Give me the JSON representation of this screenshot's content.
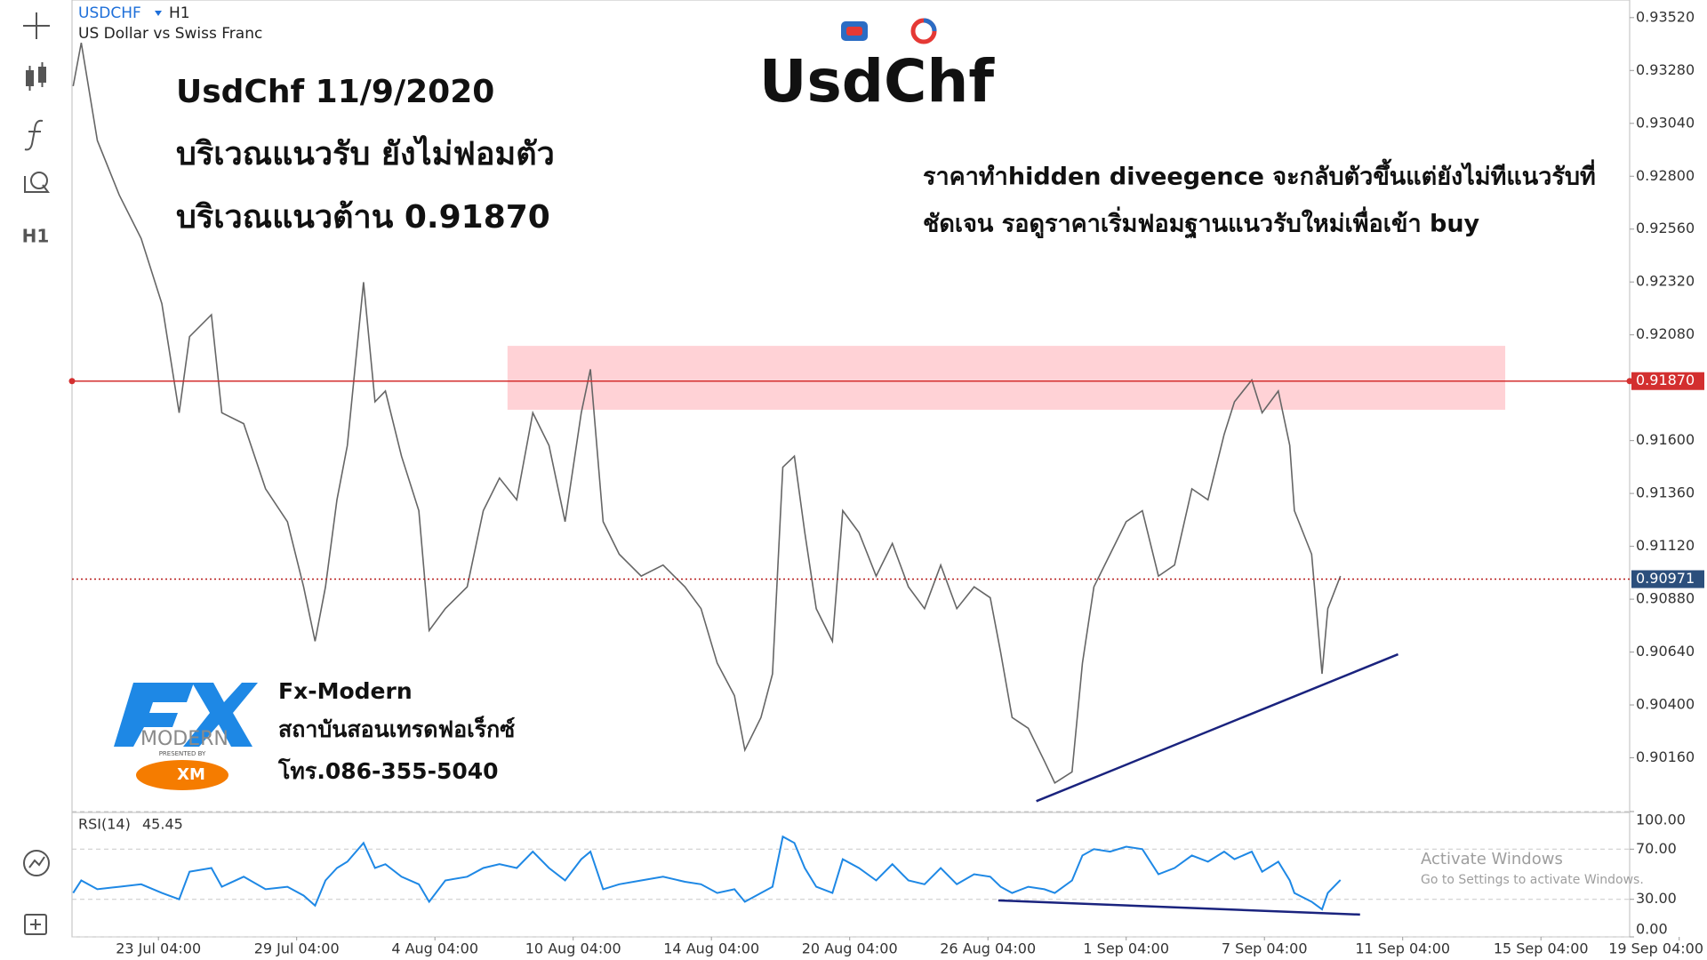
{
  "header": {
    "symbol": "USDCHF",
    "timeframe": "H1",
    "description": "US Dollar vs Swiss Franc"
  },
  "toolbar": {
    "timeframe": "H1"
  },
  "annotations": {
    "title": "UsdChf",
    "date_note": "UsdChf 11/9/2020",
    "support_note": "บริเวณแนวรับ ยังไม่ฟอมตัว",
    "resistance_note": "บริเวณแนวต้าน 0.91870",
    "comment_lines": [
      "ราคาทำhidden diveegence จะกลับตัวขึ้นแต่ยังไม่ทีแนวรับที่",
      "ชัดเจน รอดูราคาเริ่มฟอมฐานแนวรับใหม่เพื่อเข้า buy"
    ]
  },
  "logo": {
    "brand": "MODERN",
    "presented_by": "PRESENTED BY",
    "partner": "XM",
    "name": "Fx-Modern",
    "institute": "สถาบันสอนเทรดฟอเร็กซ์",
    "phone": "โทร.086-355-5040"
  },
  "watermark": {
    "title": "Activate Windows",
    "subtitle": "Go to Settings to activate Windows."
  },
  "chart_data": [
    {
      "type": "line",
      "color": "#666666",
      "x": [
        0.1,
        0.8,
        2.2,
        4.1,
        6.0,
        7.8,
        9.3,
        10.2,
        12.1,
        13.0,
        14.9,
        16.8,
        18.7,
        20.1,
        21.1,
        22.0,
        23.0,
        23.9,
        25.3,
        26.3,
        27.2,
        28.6,
        30.1,
        31.0,
        32.4,
        34.3,
        35.7,
        37.1,
        38.6,
        40.0,
        41.4,
        42.8,
        44.2,
        45.0,
        46.1,
        47.5,
        49.4,
        51.3,
        53.2,
        54.6,
        56.0,
        57.5,
        58.4,
        59.8,
        60.8,
        61.7,
        62.7,
        63.6,
        64.6,
        66.0,
        66.9,
        68.3,
        69.8,
        71.2,
        72.6,
        74.0,
        75.4,
        76.8,
        78.3,
        79.7,
        80.6,
        81.6,
        83.0,
        84.4,
        85.3,
        86.8,
        87.7,
        88.7,
        90.1,
        91.5,
        92.9,
        94.3,
        95.7,
        97.2,
        98.6,
        100.0,
        100.9,
        102.4,
        103.3,
        104.7,
        105.7,
        106.1,
        107.6,
        108.5,
        109.0,
        110.1
      ],
      "values": [
        0.93209,
        0.93406,
        0.92962,
        0.92715,
        0.92517,
        0.92221,
        0.91726,
        0.92072,
        0.92171,
        0.91726,
        0.91677,
        0.91381,
        0.91232,
        0.90936,
        0.90689,
        0.90936,
        0.91331,
        0.91578,
        0.92319,
        0.91776,
        0.91825,
        0.91529,
        0.91282,
        0.90738,
        0.90837,
        0.90936,
        0.91282,
        0.9143,
        0.91331,
        0.91726,
        0.91578,
        0.91232,
        0.91726,
        0.91924,
        0.91232,
        0.91084,
        0.90985,
        0.91035,
        0.90936,
        0.90837,
        0.9059,
        0.90442,
        0.90195,
        0.90343,
        0.90541,
        0.91479,
        0.91529,
        0.91183,
        0.90837,
        0.90689,
        0.91282,
        0.91183,
        0.90985,
        0.91133,
        0.90936,
        0.90837,
        0.91035,
        0.90837,
        0.90936,
        0.90887,
        0.90639,
        0.90343,
        0.90294,
        0.90145,
        0.90046,
        0.90096,
        0.9059,
        0.90936,
        0.91084,
        0.91232,
        0.91282,
        0.90985,
        0.91035,
        0.91381,
        0.91331,
        0.91628,
        0.91776,
        0.91875,
        0.91726,
        0.91825,
        0.91578,
        0.91282,
        0.91084,
        0.90541,
        0.90837,
        0.90985
      ],
      "xlim": [
        0,
        135.2
      ],
      "ylim": [
        0.8992,
        0.936
      ],
      "yticks": [
        {
          "value": 0.9352,
          "label": "0.93520"
        },
        {
          "value": 0.9328,
          "label": "0.93280"
        },
        {
          "value": 0.9304,
          "label": "0.93040"
        },
        {
          "value": 0.928,
          "label": "0.92800"
        },
        {
          "value": 0.9256,
          "label": "0.92560"
        },
        {
          "value": 0.9232,
          "label": "0.92320"
        },
        {
          "value": 0.9208,
          "label": "0.92080"
        },
        {
          "value": 0.916,
          "label": "0.91600"
        },
        {
          "value": 0.9136,
          "label": "0.91360"
        },
        {
          "value": 0.9112,
          "label": "0.91120"
        },
        {
          "value": 0.9088,
          "label": "0.90880"
        },
        {
          "value": 0.9064,
          "label": "0.90640"
        },
        {
          "value": 0.904,
          "label": "0.90400"
        },
        {
          "value": 0.9016,
          "label": "0.90160"
        }
      ],
      "price_lines": [
        {
          "value": 0.9187,
          "label": "0.91870",
          "color": "#d32f2f"
        },
        {
          "value": 0.90971,
          "label": "0.90971",
          "color": "#2c4f7c"
        }
      ],
      "zone": {
        "x": [
          37.8,
          124.4
        ],
        "y": [
          0.9174,
          0.9203
        ],
        "color": "#ffcdd2"
      },
      "trendline": {
        "x": [
          83.7,
          115.1
        ],
        "y": [
          0.89963,
          0.9063
        ],
        "color": "#1a237e"
      }
    },
    {
      "type": "line",
      "title": "RSI(14)",
      "color": "#1e88e5",
      "x": [
        0.1,
        0.8,
        2.2,
        4.1,
        6.0,
        7.8,
        9.3,
        10.2,
        12.1,
        13.0,
        14.9,
        16.8,
        18.7,
        20.1,
        21.1,
        22.0,
        23.0,
        23.9,
        25.3,
        26.3,
        27.2,
        28.6,
        30.1,
        31.0,
        32.4,
        34.3,
        35.7,
        37.1,
        38.6,
        40.0,
        41.4,
        42.8,
        44.2,
        45.0,
        46.1,
        47.5,
        49.4,
        51.3,
        53.2,
        54.6,
        56.0,
        57.5,
        58.4,
        59.8,
        60.8,
        61.7,
        62.7,
        63.6,
        64.6,
        66.0,
        66.9,
        68.3,
        69.8,
        71.2,
        72.6,
        74.0,
        75.4,
        76.8,
        78.3,
        79.7,
        80.6,
        81.6,
        83.0,
        84.4,
        85.3,
        86.8,
        87.7,
        88.7,
        90.1,
        91.5,
        92.9,
        94.3,
        95.7,
        97.2,
        98.6,
        100.0,
        100.9,
        102.4,
        103.3,
        104.7,
        105.7,
        106.1,
        107.6,
        108.5,
        109.0,
        110.1
      ],
      "values": [
        35,
        45,
        38,
        40,
        42,
        35,
        30,
        52,
        55,
        40,
        48,
        38,
        40,
        33,
        25,
        45,
        55,
        60,
        75,
        55,
        58,
        48,
        42,
        28,
        45,
        48,
        55,
        58,
        55,
        68,
        55,
        45,
        62,
        68,
        38,
        42,
        45,
        48,
        44,
        42,
        35,
        38,
        28,
        35,
        40,
        80,
        75,
        55,
        40,
        35,
        62,
        55,
        45,
        58,
        45,
        42,
        55,
        42,
        50,
        48,
        40,
        35,
        40,
        38,
        35,
        45,
        65,
        70,
        68,
        72,
        70,
        50,
        55,
        65,
        60,
        68,
        62,
        68,
        52,
        60,
        45,
        35,
        28,
        22,
        35,
        45.45
      ],
      "xlim": [
        0,
        135.2
      ],
      "ylim": [
        0,
        100
      ],
      "grid": true,
      "yticks": [
        {
          "value": 100,
          "label": "100.00"
        },
        {
          "value": 70,
          "label": "70.00"
        },
        {
          "value": 30,
          "label": "30.00"
        },
        {
          "value": 0,
          "label": "0.00"
        }
      ],
      "xticks": [
        {
          "value": 7.5,
          "label": "23 Jul 04:00"
        },
        {
          "value": 19.5,
          "label": "29 Jul 04:00"
        },
        {
          "value": 31.5,
          "label": "4 Aug 04:00"
        },
        {
          "value": 43.5,
          "label": "10 Aug 04:00"
        },
        {
          "value": 55.5,
          "label": "14 Aug 04:00"
        },
        {
          "value": 67.5,
          "label": "20 Aug 04:00"
        },
        {
          "value": 79.5,
          "label": "26 Aug 04:00"
        },
        {
          "value": 91.5,
          "label": "1 Sep 04:00"
        },
        {
          "value": 103.5,
          "label": "7 Sep 04:00"
        },
        {
          "value": 115.5,
          "label": "11 Sep 04:00"
        },
        {
          "value": 127.5,
          "label": "15 Sep 04:00"
        },
        {
          "value": 139.5,
          "label": "19 Sep 04:00"
        }
      ],
      "trendline": {
        "x": [
          80.4,
          111.8
        ],
        "y": [
          29.1,
          17.8
        ],
        "color": "#1a237e"
      }
    }
  ]
}
